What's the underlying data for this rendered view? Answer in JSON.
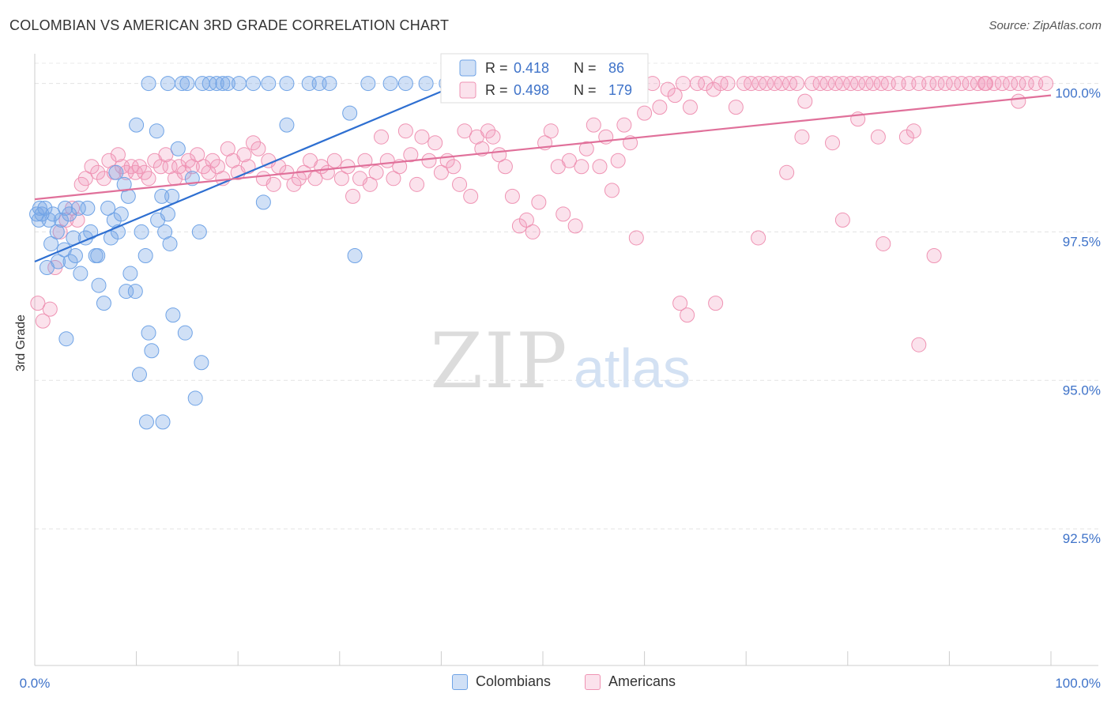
{
  "title": "COLOMBIAN VS AMERICAN 3RD GRADE CORRELATION CHART",
  "source": "Source: ZipAtlas.com",
  "watermark": {
    "zip": "ZIP",
    "atlas": "atlas"
  },
  "colors": {
    "colombians": "#6fa3e6",
    "colombians_fill": "rgba(120,165,230,0.35)",
    "colombians_line": "#2e6fd1",
    "americans": "#ef93b3",
    "americans_fill": "rgba(240,150,185,0.28)",
    "americans_line": "#e0709a",
    "tick_label": "#3f73c9"
  },
  "stats_legend": {
    "rows": [
      {
        "r_label": "R =",
        "r_value": "0.418",
        "n_label": "N =",
        "n_value": "86"
      },
      {
        "r_label": "R =",
        "r_value": "0.498",
        "n_label": "N =",
        "n_value": "179"
      }
    ]
  },
  "chart_data": {
    "type": "scatter",
    "title": "COLOMBIAN VS AMERICAN 3RD GRADE CORRELATION CHART",
    "xlabel": "",
    "ylabel": "3rd Grade",
    "xlim": [
      0,
      100
    ],
    "ylim": [
      90.2,
      100.5
    ],
    "x_tick_labels": [
      "0.0%",
      "100.0%"
    ],
    "y_ticks": [
      92.5,
      95.0,
      97.5,
      100.0
    ],
    "y_tick_labels": [
      "92.5%",
      "95.0%",
      "97.5%",
      "100.0%"
    ],
    "grid": true,
    "legend_position": "bottom-center",
    "series": [
      {
        "name": "Colombians",
        "r": 0.418,
        "n": 86,
        "trend": [
          [
            0,
            97.0
          ],
          [
            40.5,
            99.9
          ]
        ],
        "points": [
          [
            0.2,
            97.8
          ],
          [
            0.4,
            97.7
          ],
          [
            0.5,
            97.9
          ],
          [
            0.7,
            97.8
          ],
          [
            1.0,
            97.9
          ],
          [
            1.4,
            97.7
          ],
          [
            1.8,
            97.8
          ],
          [
            2.2,
            97.5
          ],
          [
            2.6,
            97.7
          ],
          [
            3.0,
            97.9
          ],
          [
            3.4,
            97.8
          ],
          [
            1.2,
            96.9
          ],
          [
            1.6,
            97.3
          ],
          [
            2.3,
            97.0
          ],
          [
            2.9,
            97.2
          ],
          [
            3.5,
            97.0
          ],
          [
            4.0,
            97.1
          ],
          [
            4.5,
            96.8
          ],
          [
            5.0,
            97.4
          ],
          [
            5.5,
            97.5
          ],
          [
            6.0,
            97.1
          ],
          [
            6.3,
            96.6
          ],
          [
            6.8,
            96.3
          ],
          [
            7.2,
            97.9
          ],
          [
            7.8,
            97.7
          ],
          [
            8.5,
            97.8
          ],
          [
            8.8,
            98.3
          ],
          [
            7.5,
            97.4
          ],
          [
            9.0,
            96.5
          ],
          [
            9.4,
            96.8
          ],
          [
            9.9,
            96.5
          ],
          [
            10.5,
            97.5
          ],
          [
            10.9,
            97.1
          ],
          [
            11.2,
            95.8
          ],
          [
            11.5,
            95.5
          ],
          [
            10.3,
            95.1
          ],
          [
            11.0,
            94.3
          ],
          [
            12.5,
            98.1
          ],
          [
            12.1,
            97.7
          ],
          [
            12.8,
            97.5
          ],
          [
            13.1,
            97.8
          ],
          [
            13.3,
            97.3
          ],
          [
            13.6,
            96.1
          ],
          [
            12.0,
            99.2
          ],
          [
            13.5,
            98.1
          ],
          [
            14.1,
            98.9
          ],
          [
            14.8,
            95.8
          ],
          [
            15.5,
            98.4
          ],
          [
            15.8,
            94.7
          ],
          [
            16.2,
            97.5
          ],
          [
            16.4,
            95.3
          ],
          [
            12.6,
            94.3
          ],
          [
            10.0,
            99.3
          ],
          [
            3.8,
            97.4
          ],
          [
            3.1,
            95.7
          ],
          [
            8.2,
            97.5
          ],
          [
            6.2,
            97.1
          ],
          [
            4.3,
            97.9
          ],
          [
            5.2,
            97.9
          ],
          [
            11.2,
            100.0
          ],
          [
            13.1,
            100.0
          ],
          [
            14.5,
            100.0
          ],
          [
            15.0,
            100.0
          ],
          [
            16.5,
            100.0
          ],
          [
            17.2,
            100.0
          ],
          [
            17.9,
            100.0
          ],
          [
            18.5,
            100.0
          ],
          [
            19.0,
            100.0
          ],
          [
            20.1,
            100.0
          ],
          [
            21.5,
            100.0
          ],
          [
            23.0,
            100.0
          ],
          [
            24.8,
            100.0
          ],
          [
            27.0,
            100.0
          ],
          [
            28.0,
            100.0
          ],
          [
            29.0,
            100.0
          ],
          [
            31.0,
            99.5
          ],
          [
            32.8,
            100.0
          ],
          [
            35.0,
            100.0
          ],
          [
            36.5,
            100.0
          ],
          [
            38.5,
            100.0
          ],
          [
            40.5,
            100.0
          ],
          [
            24.8,
            99.3
          ],
          [
            22.5,
            98.0
          ],
          [
            31.5,
            97.1
          ],
          [
            8.0,
            98.5
          ],
          [
            9.2,
            98.1
          ]
        ]
      },
      {
        "name": "Americans",
        "r": 0.498,
        "n": 179,
        "trend": [
          [
            0,
            98.05
          ],
          [
            100,
            99.8
          ]
        ],
        "points": [
          [
            0.3,
            96.3
          ],
          [
            0.8,
            96.0
          ],
          [
            1.5,
            96.2
          ],
          [
            2.0,
            96.9
          ],
          [
            2.5,
            97.5
          ],
          [
            3.1,
            97.7
          ],
          [
            3.7,
            97.9
          ],
          [
            4.2,
            97.7
          ],
          [
            4.6,
            98.3
          ],
          [
            5.0,
            98.4
          ],
          [
            5.6,
            98.6
          ],
          [
            6.2,
            98.5
          ],
          [
            6.8,
            98.4
          ],
          [
            7.3,
            98.7
          ],
          [
            7.8,
            98.5
          ],
          [
            8.2,
            98.8
          ],
          [
            8.6,
            98.6
          ],
          [
            9.0,
            98.5
          ],
          [
            9.5,
            98.6
          ],
          [
            9.9,
            98.5
          ],
          [
            10.3,
            98.6
          ],
          [
            10.8,
            98.5
          ],
          [
            11.2,
            98.4
          ],
          [
            11.8,
            98.7
          ],
          [
            12.4,
            98.6
          ],
          [
            12.9,
            98.8
          ],
          [
            13.3,
            98.6
          ],
          [
            13.8,
            98.4
          ],
          [
            14.2,
            98.6
          ],
          [
            14.7,
            98.5
          ],
          [
            15.1,
            98.7
          ],
          [
            15.5,
            98.6
          ],
          [
            16.0,
            98.8
          ],
          [
            16.6,
            98.6
          ],
          [
            17.1,
            98.5
          ],
          [
            17.5,
            98.7
          ],
          [
            18.0,
            98.6
          ],
          [
            18.5,
            98.4
          ],
          [
            19.0,
            98.9
          ],
          [
            19.5,
            98.7
          ],
          [
            20.0,
            98.5
          ],
          [
            20.6,
            98.8
          ],
          [
            21.0,
            98.6
          ],
          [
            21.5,
            99.0
          ],
          [
            22.0,
            98.9
          ],
          [
            22.5,
            98.4
          ],
          [
            23.0,
            98.7
          ],
          [
            23.5,
            98.3
          ],
          [
            24.0,
            98.6
          ],
          [
            24.8,
            98.5
          ],
          [
            25.5,
            98.3
          ],
          [
            26.0,
            98.4
          ],
          [
            26.5,
            98.5
          ],
          [
            27.1,
            98.7
          ],
          [
            27.6,
            98.4
          ],
          [
            28.2,
            98.6
          ],
          [
            28.8,
            98.5
          ],
          [
            29.5,
            98.7
          ],
          [
            30.2,
            98.4
          ],
          [
            30.8,
            98.6
          ],
          [
            31.3,
            98.1
          ],
          [
            32.0,
            98.4
          ],
          [
            32.5,
            98.7
          ],
          [
            33.0,
            98.3
          ],
          [
            33.6,
            98.5
          ],
          [
            34.1,
            99.1
          ],
          [
            34.7,
            98.7
          ],
          [
            35.3,
            98.4
          ],
          [
            35.9,
            98.6
          ],
          [
            36.5,
            99.2
          ],
          [
            37.0,
            98.8
          ],
          [
            37.6,
            98.3
          ],
          [
            38.1,
            99.1
          ],
          [
            38.8,
            98.7
          ],
          [
            39.4,
            99.0
          ],
          [
            40.0,
            98.5
          ],
          [
            40.6,
            98.7
          ],
          [
            41.2,
            98.6
          ],
          [
            41.8,
            98.3
          ],
          [
            42.3,
            99.2
          ],
          [
            42.9,
            98.1
          ],
          [
            43.5,
            99.1
          ],
          [
            44.0,
            98.9
          ],
          [
            44.6,
            99.2
          ],
          [
            45.1,
            99.1
          ],
          [
            45.7,
            98.8
          ],
          [
            46.3,
            98.6
          ],
          [
            47.0,
            98.1
          ],
          [
            47.7,
            97.6
          ],
          [
            48.4,
            97.7
          ],
          [
            49.0,
            97.5
          ],
          [
            49.6,
            98.0
          ],
          [
            50.2,
            99.0
          ],
          [
            50.8,
            99.2
          ],
          [
            51.5,
            98.6
          ],
          [
            52.0,
            97.8
          ],
          [
            52.6,
            98.7
          ],
          [
            53.2,
            97.6
          ],
          [
            53.8,
            98.6
          ],
          [
            54.3,
            98.9
          ],
          [
            55.0,
            99.3
          ],
          [
            55.6,
            98.6
          ],
          [
            56.2,
            99.1
          ],
          [
            56.8,
            98.2
          ],
          [
            57.4,
            98.7
          ],
          [
            58.0,
            99.3
          ],
          [
            58.6,
            99.0
          ],
          [
            59.2,
            97.4
          ],
          [
            60.0,
            99.5
          ],
          [
            60.8,
            100.0
          ],
          [
            61.5,
            99.6
          ],
          [
            62.3,
            99.9
          ],
          [
            63.0,
            99.8
          ],
          [
            63.8,
            100.0
          ],
          [
            64.5,
            99.6
          ],
          [
            65.2,
            100.0
          ],
          [
            66.0,
            100.0
          ],
          [
            66.8,
            99.9
          ],
          [
            67.5,
            100.0
          ],
          [
            68.2,
            100.0
          ],
          [
            69.0,
            99.6
          ],
          [
            69.8,
            100.0
          ],
          [
            70.5,
            100.0
          ],
          [
            71.3,
            100.0
          ],
          [
            72.0,
            100.0
          ],
          [
            72.8,
            100.0
          ],
          [
            73.5,
            100.0
          ],
          [
            74.3,
            100.0
          ],
          [
            75.0,
            100.0
          ],
          [
            75.8,
            99.7
          ],
          [
            76.5,
            100.0
          ],
          [
            77.3,
            100.0
          ],
          [
            78.0,
            100.0
          ],
          [
            78.8,
            100.0
          ],
          [
            79.5,
            100.0
          ],
          [
            80.3,
            100.0
          ],
          [
            81.0,
            100.0
          ],
          [
            81.8,
            100.0
          ],
          [
            82.5,
            100.0
          ],
          [
            83.3,
            100.0
          ],
          [
            84.0,
            100.0
          ],
          [
            85.0,
            100.0
          ],
          [
            86.0,
            100.0
          ],
          [
            87.0,
            100.0
          ],
          [
            88.0,
            100.0
          ],
          [
            88.8,
            100.0
          ],
          [
            89.6,
            100.0
          ],
          [
            90.4,
            100.0
          ],
          [
            91.2,
            100.0
          ],
          [
            92.0,
            100.0
          ],
          [
            92.8,
            100.0
          ],
          [
            93.6,
            100.0
          ],
          [
            94.4,
            100.0
          ],
          [
            95.2,
            100.0
          ],
          [
            96.0,
            100.0
          ],
          [
            96.8,
            100.0
          ],
          [
            97.6,
            100.0
          ],
          [
            98.5,
            100.0
          ],
          [
            99.5,
            100.0
          ],
          [
            63.5,
            96.3
          ],
          [
            64.2,
            96.1
          ],
          [
            67.0,
            96.3
          ],
          [
            71.2,
            97.4
          ],
          [
            74.0,
            98.5
          ],
          [
            75.5,
            99.1
          ],
          [
            78.5,
            99.0
          ],
          [
            79.5,
            97.7
          ],
          [
            81.0,
            99.4
          ],
          [
            83.5,
            97.3
          ],
          [
            85.8,
            99.1
          ],
          [
            87.0,
            95.6
          ],
          [
            83.0,
            99.1
          ],
          [
            86.5,
            99.2
          ],
          [
            88.5,
            97.1
          ],
          [
            93.5,
            100.0
          ],
          [
            96.8,
            99.7
          ]
        ]
      }
    ]
  },
  "legend": {
    "colombians": "Colombians",
    "americans": "Americans"
  }
}
